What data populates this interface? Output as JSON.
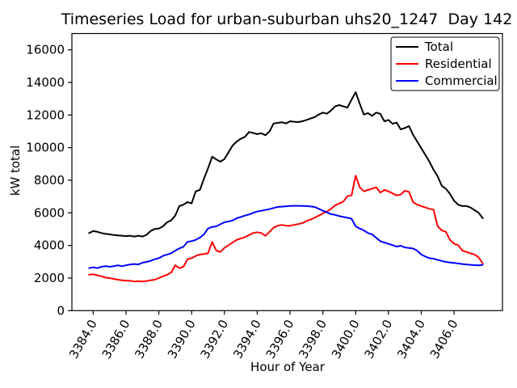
{
  "chart_data": {
    "type": "line",
    "title": "Timeseries Load for urban-suburban uhs20_1247  Day 142",
    "xlabel": "Hour of Year",
    "ylabel": "kW total",
    "xlim": [
      3382.7,
      3408.95
    ],
    "ylim": [
      0,
      17000
    ],
    "grid": false,
    "legend_position": "upper right",
    "x_tick_values": [
      3384,
      3386,
      3388,
      3390,
      3392,
      3394,
      3396,
      3398,
      3400,
      3402,
      3404,
      3406
    ],
    "x_tick_labels": [
      "3384.0",
      "3386.0",
      "3388.0",
      "3390.0",
      "3392.0",
      "3394.0",
      "3396.0",
      "3398.0",
      "3400.0",
      "3402.0",
      "3404.0",
      "3406.0"
    ],
    "y_tick_values": [
      0,
      2000,
      4000,
      6000,
      8000,
      10000,
      12000,
      14000,
      16000
    ],
    "y_tick_labels": [
      "0",
      "2000",
      "4000",
      "6000",
      "8000",
      "10000",
      "12000",
      "14000",
      "16000"
    ],
    "x_start": 3383.75,
    "x_step": 0.25,
    "series": [
      {
        "name": "Total",
        "color": "#000000",
        "values": [
          4760,
          4880,
          4840,
          4760,
          4710,
          4680,
          4640,
          4615,
          4595,
          4570,
          4595,
          4545,
          4595,
          4545,
          4650,
          4890,
          5010,
          5040,
          5170,
          5420,
          5535,
          5830,
          6415,
          6500,
          6660,
          6580,
          7320,
          7405,
          8100,
          8730,
          9440,
          9280,
          9140,
          9300,
          9720,
          10130,
          10380,
          10545,
          10660,
          10960,
          10900,
          10830,
          10880,
          10760,
          11000,
          11480,
          11520,
          11560,
          11480,
          11620,
          11590,
          11570,
          11620,
          11700,
          11790,
          11870,
          12030,
          12150,
          12080,
          12280,
          12530,
          12610,
          12530,
          12450,
          12945,
          13405,
          12700,
          12030,
          12120,
          11950,
          12150,
          12080,
          11620,
          11700,
          11460,
          11540,
          11120,
          11210,
          11320,
          10790,
          10380,
          9970,
          9550,
          9140,
          8645,
          8235,
          7655,
          7490,
          7160,
          6745,
          6500,
          6415,
          6415,
          6330,
          6165,
          6000,
          5670
        ]
      },
      {
        "name": "Residential",
        "color": "#ff0000",
        "values": [
          2200,
          2230,
          2165,
          2115,
          2030,
          2000,
          1950,
          1900,
          1865,
          1835,
          1835,
          1785,
          1815,
          1785,
          1815,
          1865,
          1900,
          2000,
          2115,
          2200,
          2330,
          2780,
          2610,
          2695,
          3155,
          3220,
          3355,
          3440,
          3470,
          3520,
          4215,
          3685,
          3600,
          3850,
          4015,
          4180,
          4345,
          4430,
          4510,
          4640,
          4760,
          4810,
          4760,
          4590,
          4840,
          5090,
          5210,
          5260,
          5210,
          5210,
          5260,
          5310,
          5370,
          5505,
          5585,
          5700,
          5830,
          5965,
          6080,
          6250,
          6460,
          6575,
          6695,
          7020,
          7070,
          8280,
          7570,
          7320,
          7405,
          7490,
          7570,
          7240,
          7405,
          7320,
          7190,
          7070,
          7120,
          7355,
          7290,
          6660,
          6500,
          6415,
          6330,
          6250,
          6200,
          5170,
          4925,
          4840,
          4345,
          4100,
          4015,
          3685,
          3600,
          3520,
          3440,
          3270,
          2890
        ]
      },
      {
        "name": "Commercial",
        "color": "#0000ff",
        "values": [
          2610,
          2660,
          2610,
          2695,
          2730,
          2695,
          2730,
          2780,
          2730,
          2780,
          2830,
          2860,
          2830,
          2940,
          2990,
          3055,
          3155,
          3220,
          3355,
          3440,
          3520,
          3680,
          3820,
          3920,
          4220,
          4265,
          4345,
          4480,
          4680,
          5040,
          5140,
          5170,
          5300,
          5420,
          5470,
          5535,
          5670,
          5750,
          5830,
          5900,
          6000,
          6080,
          6130,
          6180,
          6230,
          6300,
          6365,
          6380,
          6400,
          6420,
          6430,
          6430,
          6420,
          6415,
          6390,
          6365,
          6250,
          6130,
          6030,
          5920,
          5870,
          5800,
          5750,
          5700,
          5640,
          5170,
          5040,
          4925,
          4760,
          4680,
          4470,
          4265,
          4180,
          4100,
          4015,
          3930,
          3980,
          3880,
          3845,
          3815,
          3685,
          3440,
          3320,
          3220,
          3190,
          3110,
          3050,
          2990,
          2955,
          2925,
          2890,
          2860,
          2830,
          2810,
          2790,
          2780,
          2810
        ]
      }
    ]
  }
}
